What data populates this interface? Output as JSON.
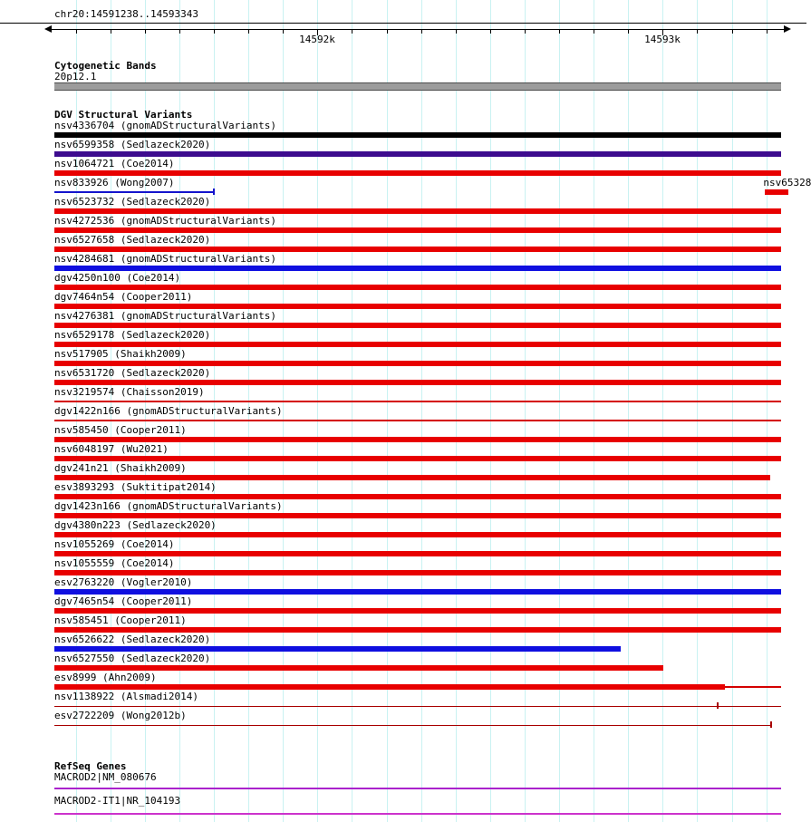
{
  "region": {
    "title": "chr20:14591238..14593343",
    "start": 14591238,
    "end": 14593343,
    "grid_first": 14591300,
    "grid_last": 14593300,
    "grid_step": 100,
    "major_ticks": [
      {
        "pos": 14592000,
        "label": "14592k"
      },
      {
        "pos": 14593000,
        "label": "14593k"
      }
    ]
  },
  "colors": {
    "grid": "#c9f2f2",
    "band_fill": "#9c9c9c",
    "band_edge": "#4d4d4d",
    "red": "#e80000",
    "blue": "#0f0fe0",
    "purple": "#3d0c8e",
    "dark_red": "#a80000"
  },
  "cytobands": {
    "header": "Cytogenetic Bands",
    "band_label": "20p12.1"
  },
  "dgv": {
    "header": "DGV Structural Variants",
    "variants": [
      {
        "label": "nsv4336704 (gnomADStructuralVariants)",
        "bars": [
          {
            "s": 0,
            "e": 1,
            "c": "#000000",
            "h": 6
          }
        ]
      },
      {
        "label": "nsv6599358 (Sedlazeck2020)",
        "bars": [
          {
            "s": 0,
            "e": 1,
            "c": "#3d0c8e",
            "h": 6
          }
        ]
      },
      {
        "label": "nsv1064721 (Coe2014)",
        "bars": [
          {
            "s": 0,
            "e": 1,
            "c": "#e80000",
            "h": 6
          }
        ]
      },
      {
        "label": "nsv833926 (Wong2007)",
        "bars": [
          {
            "s": 0,
            "e": 0.218,
            "c": "#1414cc",
            "h": 2
          },
          {
            "s": 0.978,
            "e": 1.01,
            "c": "#e80000",
            "h": 6
          }
        ],
        "ticks": [
          {
            "p": 0.218,
            "c": "#1414cc"
          }
        ],
        "labels2": [
          {
            "text": "nsv65328",
            "p": 0.9755
          }
        ]
      },
      {
        "label": "nsv6523732 (Sedlazeck2020)",
        "bars": [
          {
            "s": 0,
            "e": 1,
            "c": "#e80000",
            "h": 6
          }
        ]
      },
      {
        "label": "nsv4272536 (gnomADStructuralVariants)",
        "bars": [
          {
            "s": 0,
            "e": 1,
            "c": "#e80000",
            "h": 6
          }
        ]
      },
      {
        "label": "nsv6527658 (Sedlazeck2020)",
        "bars": [
          {
            "s": 0,
            "e": 1,
            "c": "#e80000",
            "h": 6
          }
        ]
      },
      {
        "label": "nsv4284681 (gnomADStructuralVariants)",
        "bars": [
          {
            "s": 0,
            "e": 1,
            "c": "#0f0fe0",
            "h": 6
          }
        ]
      },
      {
        "label": "dgv4250n100 (Coe2014)",
        "bars": [
          {
            "s": 0,
            "e": 1,
            "c": "#e80000",
            "h": 6
          }
        ]
      },
      {
        "label": "dgv7464n54 (Cooper2011)",
        "bars": [
          {
            "s": 0,
            "e": 1,
            "c": "#e80000",
            "h": 6
          }
        ]
      },
      {
        "label": "nsv4276381 (gnomADStructuralVariants)",
        "bars": [
          {
            "s": 0,
            "e": 1,
            "c": "#e80000",
            "h": 6
          }
        ]
      },
      {
        "label": "nsv6529178 (Sedlazeck2020)",
        "bars": [
          {
            "s": 0,
            "e": 1,
            "c": "#e80000",
            "h": 6
          }
        ]
      },
      {
        "label": "nsv517905 (Shaikh2009)",
        "bars": [
          {
            "s": 0,
            "e": 1,
            "c": "#e80000",
            "h": 6
          }
        ]
      },
      {
        "label": "nsv6531720 (Sedlazeck2020)",
        "bars": [
          {
            "s": 0,
            "e": 1,
            "c": "#e80000",
            "h": 6
          }
        ]
      },
      {
        "label": "nsv3219574 (Chaisson2019)",
        "bars": [
          {
            "s": 0,
            "e": 1,
            "c": "#d40000",
            "h": 2
          }
        ]
      },
      {
        "label": "dgv1422n166 (gnomADStructuralVariants)",
        "bars": [
          {
            "s": 0,
            "e": 1,
            "c": "#d40000",
            "h": 2
          }
        ]
      },
      {
        "label": "nsv585450 (Cooper2011)",
        "bars": [
          {
            "s": 0,
            "e": 1,
            "c": "#e80000",
            "h": 6
          }
        ]
      },
      {
        "label": "nsv6048197 (Wu2021)",
        "bars": [
          {
            "s": 0,
            "e": 1,
            "c": "#e80000",
            "h": 6
          }
        ]
      },
      {
        "label": "dgv241n21 (Shaikh2009)",
        "bars": [
          {
            "s": 0,
            "e": 0.985,
            "c": "#e80000",
            "h": 6
          }
        ]
      },
      {
        "label": "esv3893293 (Suktitipat2014)",
        "bars": [
          {
            "s": 0,
            "e": 1,
            "c": "#e80000",
            "h": 6
          }
        ]
      },
      {
        "label": "dgv1423n166 (gnomADStructuralVariants)",
        "bars": [
          {
            "s": 0,
            "e": 1,
            "c": "#e80000",
            "h": 6
          }
        ]
      },
      {
        "label": "dgv4380n223 (Sedlazeck2020)",
        "bars": [
          {
            "s": 0,
            "e": 1,
            "c": "#e80000",
            "h": 6
          }
        ]
      },
      {
        "label": "nsv1055269 (Coe2014)",
        "bars": [
          {
            "s": 0,
            "e": 1,
            "c": "#e80000",
            "h": 6
          }
        ]
      },
      {
        "label": "nsv1055559 (Coe2014)",
        "bars": [
          {
            "s": 0,
            "e": 1,
            "c": "#e80000",
            "h": 6
          }
        ]
      },
      {
        "label": "esv2763220 (Vogler2010)",
        "bars": [
          {
            "s": 0,
            "e": 1,
            "c": "#0f0fe0",
            "h": 6
          }
        ]
      },
      {
        "label": "dgv7465n54 (Cooper2011)",
        "bars": [
          {
            "s": 0,
            "e": 1,
            "c": "#e80000",
            "h": 6
          }
        ]
      },
      {
        "label": "nsv585451 (Cooper2011)",
        "bars": [
          {
            "s": 0,
            "e": 1,
            "c": "#e80000",
            "h": 6
          }
        ]
      },
      {
        "label": "nsv6526622 (Sedlazeck2020)",
        "bars": [
          {
            "s": 0,
            "e": 0.779,
            "c": "#0f0fe0",
            "h": 6
          }
        ]
      },
      {
        "label": "nsv6527550 (Sedlazeck2020)",
        "bars": [
          {
            "s": 0,
            "e": 0.838,
            "c": "#e80000",
            "h": 6
          }
        ]
      },
      {
        "label": "esv8999 (Ahn2009)",
        "bars": [
          {
            "s": 0,
            "e": 0.923,
            "c": "#e80000",
            "h": 6
          },
          {
            "s": 0.923,
            "e": 1,
            "c": "#d40000",
            "h": 2
          }
        ]
      },
      {
        "label": "nsv1138922 (Alsmadi2014)",
        "bars": [
          {
            "s": 0,
            "e": 1,
            "c": "#a80000",
            "h": 1
          }
        ],
        "ticks": [
          {
            "p": 0.912,
            "c": "#a80000"
          }
        ]
      },
      {
        "label": "esv2722209 (Wong2012b)",
        "bars": [
          {
            "s": 0,
            "e": 0.987,
            "c": "#a80000",
            "h": 1
          }
        ],
        "ticks": [
          {
            "p": 0.985,
            "c": "#a80000"
          }
        ]
      }
    ]
  },
  "refseq": {
    "header": "RefSeq Genes",
    "genes": [
      {
        "label": "MACROD2|NM_080676",
        "color": "#aa22cc"
      },
      {
        "label": "MACROD2-IT1|NR_104193",
        "color": "#cc33cc"
      }
    ]
  }
}
